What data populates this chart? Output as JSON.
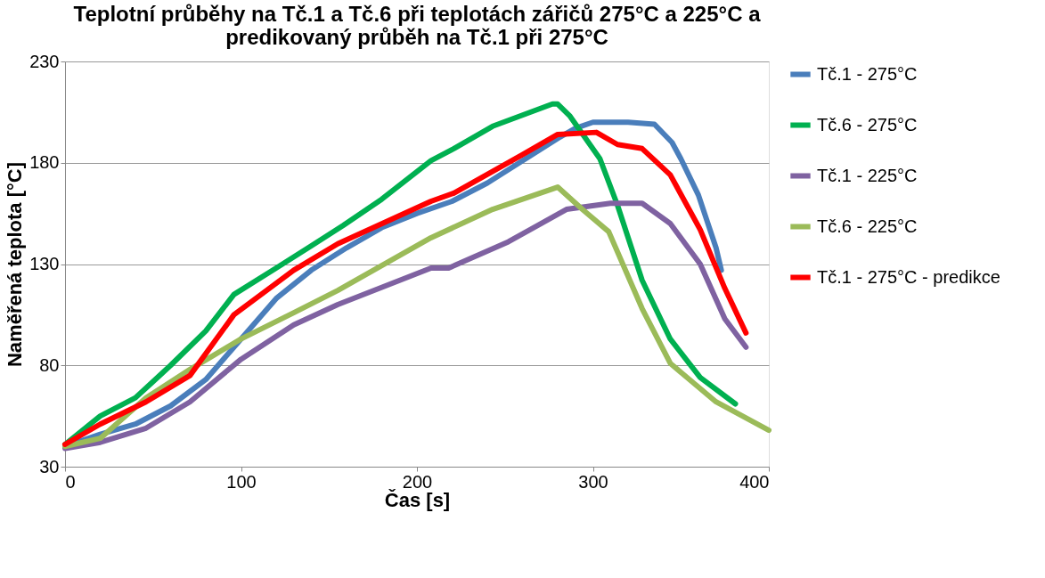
{
  "chart_data": {
    "type": "line",
    "title": "Teplotní průběhy na Tč.1 a Tč.6 při teplotách zářičů 275°C a 225°C a predikovaný průběh na Tč.1 při 275°C",
    "xlabel": "Čas [s]",
    "ylabel": "Naměřená teplota [°C]",
    "xlim": [
      0,
      400
    ],
    "xticks": [
      0,
      100,
      200,
      300,
      400
    ],
    "ylim": [
      30,
      230
    ],
    "yticks": [
      30,
      80,
      130,
      180,
      230
    ],
    "grid": "y",
    "legend": "right",
    "marker": "none",
    "line_style": "solid",
    "series": [
      {
        "name": "Tč.1 - 275°C",
        "color": "#4a7ebb",
        "x": [
          0,
          20,
          40,
          60,
          80,
          100,
          120,
          140,
          160,
          180,
          200,
          220,
          240,
          260,
          280,
          290,
          300,
          320,
          335,
          345,
          350,
          360,
          370,
          373
        ],
        "values": [
          40,
          46,
          51,
          60,
          73,
          93,
          113,
          127,
          138,
          148,
          155,
          161,
          170,
          181,
          192,
          197,
          200,
          200,
          199,
          190,
          182,
          164,
          138,
          127
        ]
      },
      {
        "name": "Tč.6 - 275°C",
        "color": "#00b050",
        "x": [
          0,
          20,
          40,
          50,
          60,
          80,
          96,
          120,
          140,
          158,
          180,
          208,
          221,
          243,
          277,
          280,
          287,
          304,
          314,
          328,
          344,
          361,
          381
        ],
        "values": [
          41,
          55,
          64,
          72,
          80,
          97,
          115,
          128,
          139,
          149,
          162,
          181,
          187,
          198,
          209,
          209,
          203,
          182,
          159,
          122,
          93,
          74,
          61
        ]
      },
      {
        "name": "Tč.1 - 225°C",
        "color": "#7f62a1",
        "x": [
          0,
          20,
          46,
          71,
          100,
          130,
          155,
          208,
          218,
          252,
          285,
          310,
          328,
          344,
          361,
          375,
          387
        ],
        "values": [
          39,
          42,
          49,
          62,
          83,
          100,
          110,
          128,
          128,
          141,
          157,
          160,
          160,
          150,
          130,
          103,
          89
        ]
      },
      {
        "name": "Tč.6 - 225°C",
        "color": "#9bbb59",
        "x": [
          0,
          20,
          46,
          71,
          100,
          130,
          155,
          208,
          243,
          280,
          294,
          309,
          328,
          344,
          370,
          400
        ],
        "values": [
          40,
          44,
          64,
          78,
          93,
          106,
          117,
          143,
          157,
          168,
          157,
          146,
          108,
          81,
          62,
          48
        ]
      },
      {
        "name": "Tč.1 - 275°C - predikce",
        "color": "#ff0000",
        "x": [
          0,
          20,
          46,
          71,
          96,
          130,
          155,
          208,
          221,
          260,
          280,
          302,
          314,
          328,
          344,
          361,
          375,
          387
        ],
        "values": [
          41,
          51,
          62,
          75,
          105,
          127,
          140,
          161,
          165,
          184,
          194,
          195,
          189,
          187,
          174,
          147,
          118,
          96
        ]
      }
    ]
  }
}
